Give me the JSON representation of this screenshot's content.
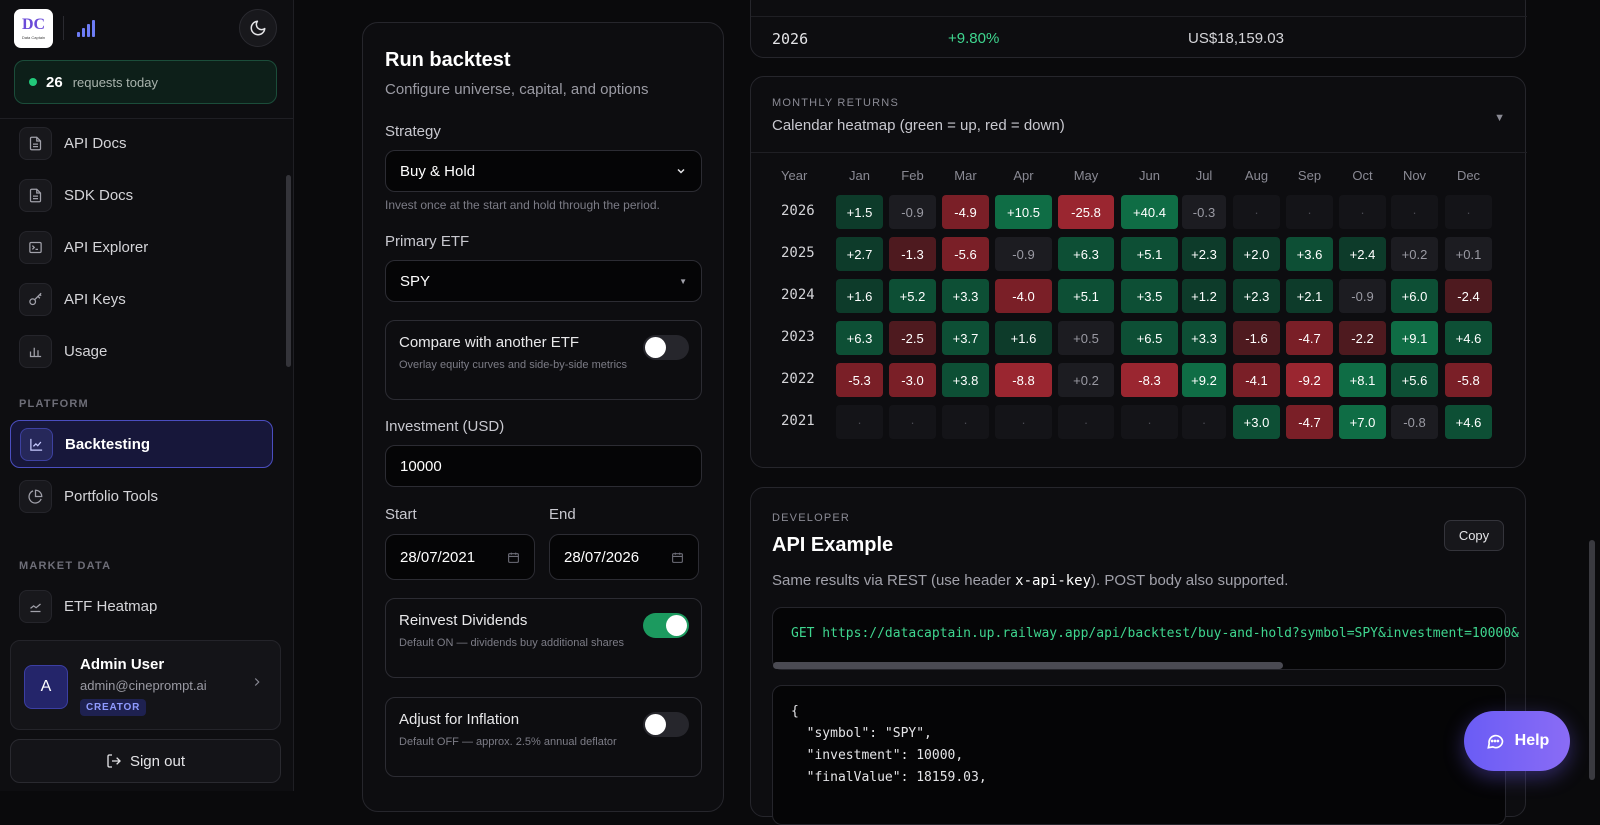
{
  "sidebar": {
    "logo_text": "Data Captain",
    "requests_count": "26",
    "requests_label": "requests today",
    "items_top": [
      {
        "label": "API Docs",
        "icon": "document-icon"
      },
      {
        "label": "SDK Docs",
        "icon": "document-icon"
      },
      {
        "label": "API Explorer",
        "icon": "terminal-icon"
      },
      {
        "label": "API Keys",
        "icon": "key-icon"
      },
      {
        "label": "Usage",
        "icon": "bar-chart-icon"
      }
    ],
    "section_platform": "PLATFORM",
    "items_platform": [
      {
        "label": "Backtesting",
        "icon": "line-chart-icon",
        "active": true
      },
      {
        "label": "Portfolio Tools",
        "icon": "pie-chart-icon"
      }
    ],
    "section_market": "MARKET DATA",
    "items_market": [
      {
        "label": "ETF Heatmap",
        "icon": "trend-icon"
      }
    ],
    "user": {
      "initial": "A",
      "name": "Admin User",
      "email": "admin@cineprompt.ai",
      "role": "CREATOR"
    },
    "signout_label": "Sign out"
  },
  "form": {
    "title": "Run backtest",
    "subtitle": "Configure universe, capital, and options",
    "strategy_label": "Strategy",
    "strategy_value": "Buy & Hold",
    "strategy_help": "Invest once at the start and hold through the period.",
    "etf_label": "Primary ETF",
    "etf_value": "SPY",
    "compare": {
      "title": "Compare with another ETF",
      "desc": "Overlay equity curves and side-by-side metrics",
      "on": false
    },
    "investment_label": "Investment (USD)",
    "investment_value": "10000",
    "start_label": "Start",
    "start_value": "28/07/2021",
    "end_label": "End",
    "end_value": "28/07/2026",
    "reinvest": {
      "title": "Reinvest Dividends",
      "desc": "Default ON — dividends buy additional shares",
      "on": true
    },
    "inflation": {
      "title": "Adjust for Inflation",
      "desc": "Default OFF — approx. 2.5% annual deflator",
      "on": false
    }
  },
  "yearly_row": {
    "year": "2026",
    "return": "+9.80%",
    "value": "US$18,159.03"
  },
  "heatmap": {
    "kicker": "MONTHLY RETURNS",
    "subtitle": "Calendar heatmap (green = up, red = down)",
    "year_header": "Year",
    "months": [
      "Jan",
      "Feb",
      "Mar",
      "Apr",
      "May",
      "Jun",
      "Jul",
      "Aug",
      "Sep",
      "Oct",
      "Nov",
      "Dec"
    ],
    "rows": [
      {
        "year": "2026",
        "values": [
          "+1.5",
          "-0.9",
          "-4.9",
          "+10.5",
          "-25.8",
          "+40.4",
          "-0.3",
          "·",
          "·",
          "·",
          "·",
          "·"
        ]
      },
      {
        "year": "2025",
        "values": [
          "+2.7",
          "-1.3",
          "-5.6",
          "-0.9",
          "+6.3",
          "+5.1",
          "+2.3",
          "+2.0",
          "+3.6",
          "+2.4",
          "+0.2",
          "+0.1"
        ]
      },
      {
        "year": "2024",
        "values": [
          "+1.6",
          "+5.2",
          "+3.3",
          "-4.0",
          "+5.1",
          "+3.5",
          "+1.2",
          "+2.3",
          "+2.1",
          "-0.9",
          "+6.0",
          "-2.4"
        ]
      },
      {
        "year": "2023",
        "values": [
          "+6.3",
          "-2.5",
          "+3.7",
          "+1.6",
          "+0.5",
          "+6.5",
          "+3.3",
          "-1.6",
          "-4.7",
          "-2.2",
          "+9.1",
          "+4.6"
        ]
      },
      {
        "year": "2022",
        "values": [
          "-5.3",
          "-3.0",
          "+3.8",
          "-8.8",
          "+0.2",
          "-8.3",
          "+9.2",
          "-4.1",
          "-9.2",
          "+8.1",
          "+5.6",
          "-5.8"
        ]
      },
      {
        "year": "2021",
        "values": [
          "·",
          "·",
          "·",
          "·",
          "·",
          "·",
          "·",
          "+3.0",
          "-4.7",
          "+7.0",
          "-0.8",
          "+4.6"
        ]
      }
    ]
  },
  "api": {
    "kicker": "DEVELOPER",
    "title": "API Example",
    "copy_label": "Copy",
    "desc_before": "Same results via REST (use header ",
    "desc_code": "x-api-key",
    "desc_after": "). POST body also supported.",
    "url": "GET https://datacaptain.up.railway.app/api/backtest/buy-and-hold?symbol=SPY&investment=10000&",
    "json_lines": [
      "{",
      "  \"symbol\": \"SPY\",",
      "  \"investment\": 10000,",
      "  \"finalValue\": 18159.03,"
    ]
  },
  "help_label": "Help",
  "colors": {
    "accent": "#6a5cf5",
    "up": "#0f5c3d",
    "down": "#8a2228",
    "neutral": "#1a1a1f"
  }
}
